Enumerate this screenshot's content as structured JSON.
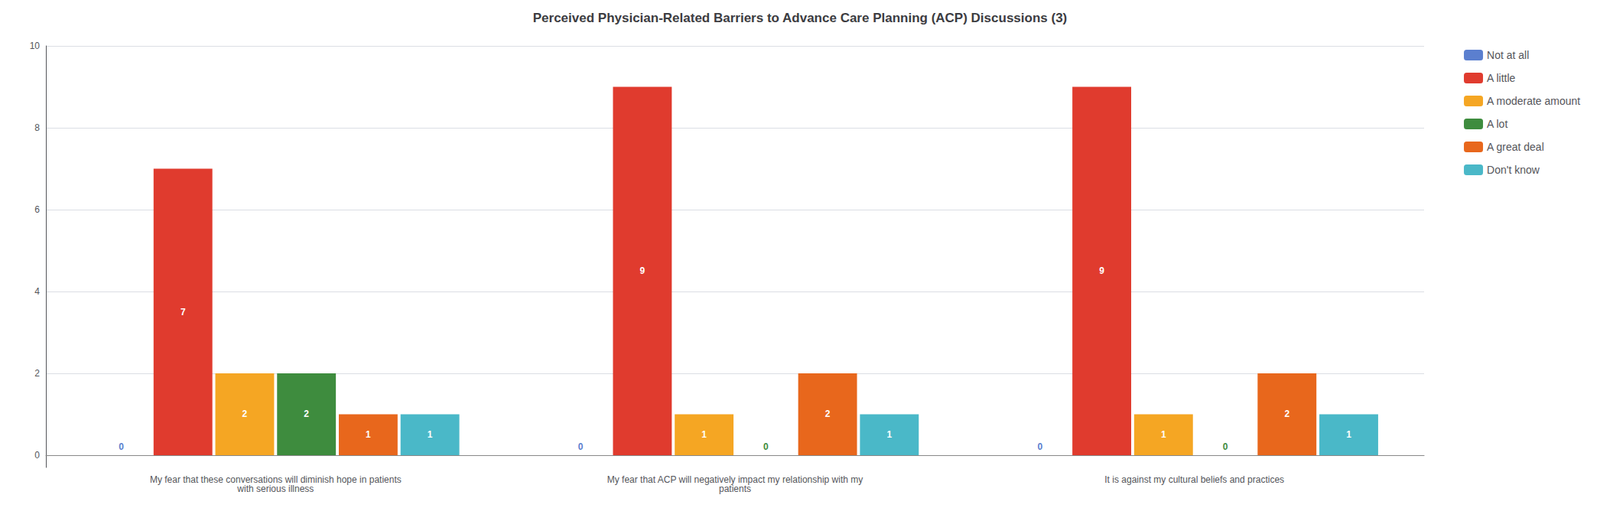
{
  "chart_data": {
    "type": "bar",
    "title": "Perceived Physician-Related Barriers to Advance Care Planning (ACP) Discussions (3)",
    "categories": [
      "My fear that these conversations will diminish hope in patients\nwith serious illness",
      "My fear that ACP will negatively impact my relationship with my\npatients",
      "It is against my cultural beliefs and practices"
    ],
    "series": [
      {
        "name": "Not at all",
        "color": "#5b7fcf",
        "values": [
          0,
          0,
          0
        ]
      },
      {
        "name": "A little",
        "color": "#e03b2e",
        "values": [
          7,
          9,
          9
        ]
      },
      {
        "name": "A moderate amount",
        "color": "#f5a623",
        "values": [
          2,
          1,
          1
        ]
      },
      {
        "name": "A lot",
        "color": "#3e8c3e",
        "values": [
          2,
          0,
          0
        ]
      },
      {
        "name": "A great deal",
        "color": "#e8671c",
        "values": [
          1,
          2,
          2
        ]
      },
      {
        "name": "Don't know",
        "color": "#4ab8c8",
        "values": [
          1,
          1,
          1
        ]
      }
    ],
    "ylim": [
      -0.3,
      10
    ],
    "yticks": [
      0,
      2,
      4,
      6,
      8,
      10
    ],
    "grid": true,
    "legend": "right",
    "data_labels": true
  }
}
